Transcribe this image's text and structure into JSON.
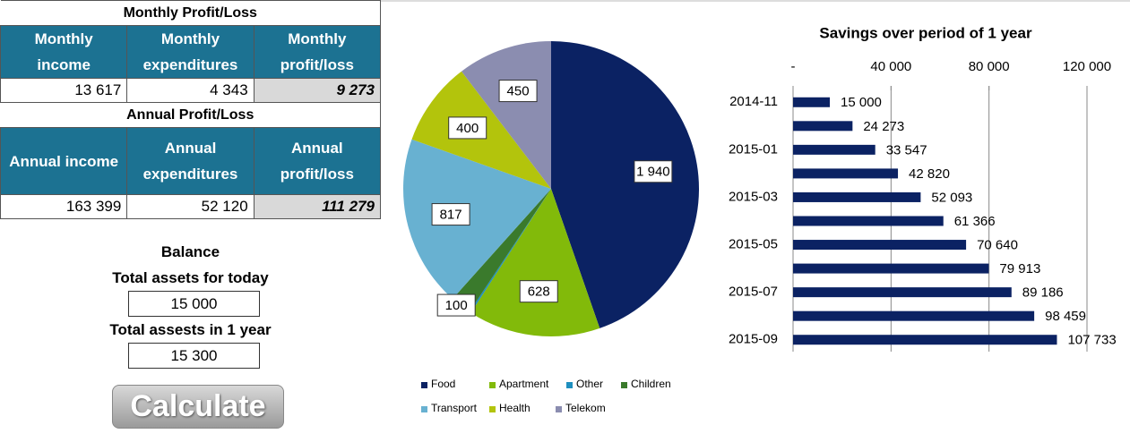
{
  "monthly": {
    "title": "Monthly Profit/Loss",
    "headers": [
      "Monthly income",
      "Monthly expenditures",
      "Monthly profit/loss"
    ],
    "values": [
      "13 617",
      "4 343",
      "9 273"
    ]
  },
  "annual": {
    "title": "Annual Profit/Loss",
    "headers": [
      "Annual income",
      "Annual expenditures",
      "Annual profit/loss"
    ],
    "values": [
      "163 399",
      "52 120",
      "111 279"
    ]
  },
  "balance": {
    "title": "Balance",
    "today_label": "Total assets for today",
    "today_value": "15 000",
    "year_label": "Total assests in 1 year",
    "year_value": "15 300"
  },
  "button": "Calculate",
  "chart_data": [
    {
      "type": "pie",
      "categories": [
        "Food",
        "Apartment",
        "Other",
        "Children",
        "Transport",
        "Health",
        "Telekom"
      ],
      "values": [
        1940,
        628,
        8,
        100,
        817,
        400,
        450
      ],
      "value_labels": [
        "1 940",
        "628",
        null,
        "100",
        "817",
        "400",
        "450"
      ],
      "colors": [
        "#0b2263",
        "#82ba0a",
        "#1f8fbf",
        "#3a7a2c",
        "#68b1d1",
        "#b3c40c",
        "#8b8db0"
      ]
    },
    {
      "type": "bar",
      "orientation": "horizontal",
      "title": "Savings over period of 1 year",
      "categories": [
        "2014-11",
        null,
        "2015-01",
        null,
        "2015-03",
        null,
        "2015-05",
        null,
        "2015-07",
        null,
        "2015-09"
      ],
      "values": [
        15000,
        24273,
        33547,
        42820,
        52093,
        61366,
        70640,
        79913,
        89186,
        98459,
        107733
      ],
      "value_labels": [
        "15 000",
        "24 273",
        "33 547",
        "42 820",
        "52 093",
        "61 366",
        "70 640",
        "79 913",
        "89 186",
        "98 459",
        "107 733"
      ],
      "color": "#0b2263",
      "xlim": [
        0,
        120000
      ],
      "xticks": [
        {
          "value": 0,
          "label": "-"
        },
        {
          "value": 40000,
          "label": "40 000"
        },
        {
          "value": 80000,
          "label": "80 000"
        },
        {
          "value": 120000,
          "label": "120 000"
        }
      ],
      "grid": true
    }
  ]
}
